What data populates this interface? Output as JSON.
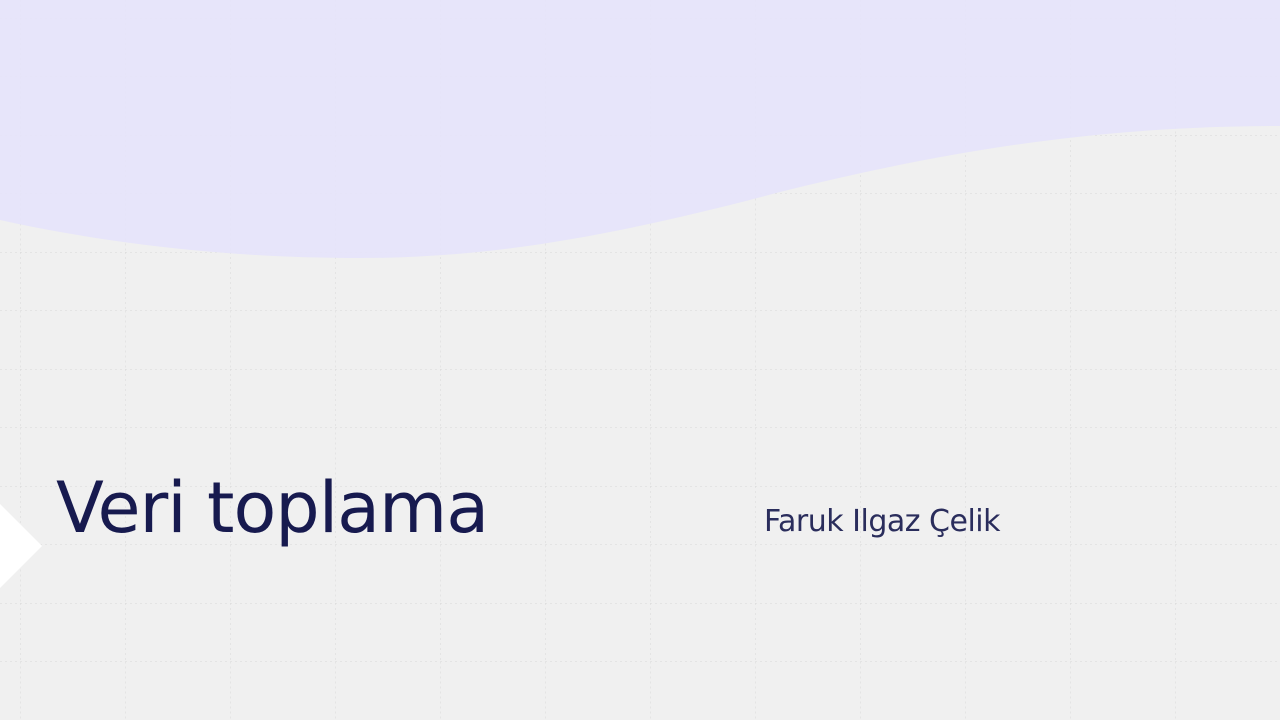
{
  "slide": {
    "title": "Veri toplama",
    "subtitle": "Faruk Ilgaz Çelik"
  },
  "colors": {
    "background": "#f0f0f0",
    "wave": "#e5e3fb",
    "grid": "#dcdcdc",
    "title_text": "#171a4f",
    "subtitle_text": "#2a2d5c",
    "triangle": "#ffffff"
  }
}
